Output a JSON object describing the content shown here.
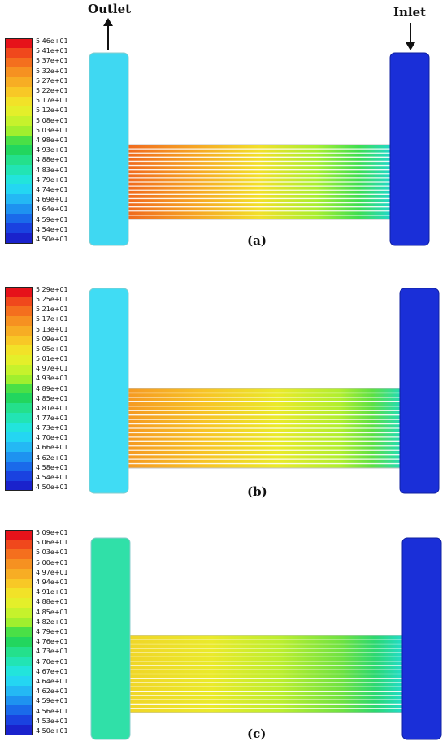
{
  "flow_labels": {
    "outlet": "Outlet",
    "inlet": "Inlet"
  },
  "panels": [
    {
      "caption": "(a)",
      "ticks": [
        "5.46e+01",
        "5.41e+01",
        "5.37e+01",
        "5.32e+01",
        "5.27e+01",
        "5.22e+01",
        "5.17e+01",
        "5.12e+01",
        "5.08e+01",
        "5.03e+01",
        "4.98e+01",
        "4.93e+01",
        "4.88e+01",
        "4.83e+01",
        "4.79e+01",
        "4.74e+01",
        "4.69e+01",
        "4.64e+01",
        "4.59e+01",
        "4.54e+01",
        "4.50e+01"
      ],
      "outlet_color": "#3fd8f2"
    },
    {
      "caption": "(b)",
      "ticks": [
        "5.29e+01",
        "5.25e+01",
        "5.21e+01",
        "5.17e+01",
        "5.13e+01",
        "5.09e+01",
        "5.05e+01",
        "5.01e+01",
        "4.97e+01",
        "4.93e+01",
        "4.89e+01",
        "4.85e+01",
        "4.81e+01",
        "4.77e+01",
        "4.73e+01",
        "4.70e+01",
        "4.66e+01",
        "4.62e+01",
        "4.58e+01",
        "4.54e+01",
        "4.50e+01"
      ],
      "outlet_color": "#40dcf4"
    },
    {
      "caption": "(c)",
      "ticks": [
        "5.09e+01",
        "5.06e+01",
        "5.03e+01",
        "5.00e+01",
        "4.97e+01",
        "4.94e+01",
        "4.91e+01",
        "4.88e+01",
        "4.85e+01",
        "4.82e+01",
        "4.79e+01",
        "4.76e+01",
        "4.73e+01",
        "4.70e+01",
        "4.67e+01",
        "4.64e+01",
        "4.62e+01",
        "4.59e+01",
        "4.56e+01",
        "4.53e+01",
        "4.50e+01"
      ],
      "outlet_color": "#30e0a8"
    }
  ],
  "colormap": [
    "#e6121a",
    "#f0481c",
    "#f46f1e",
    "#f69121",
    "#f7ad24",
    "#f8c826",
    "#f2e228",
    "#e4ef2a",
    "#c6f22c",
    "#a0ef2e",
    "#4ae046",
    "#22d65e",
    "#24e08c",
    "#22e4b4",
    "#22e4dc",
    "#24d6f2",
    "#24b8f4",
    "#1e92f0",
    "#1a6aea",
    "#1a42e0",
    "#1a22cc"
  ],
  "inlet_color": "#1a2fd8"
}
